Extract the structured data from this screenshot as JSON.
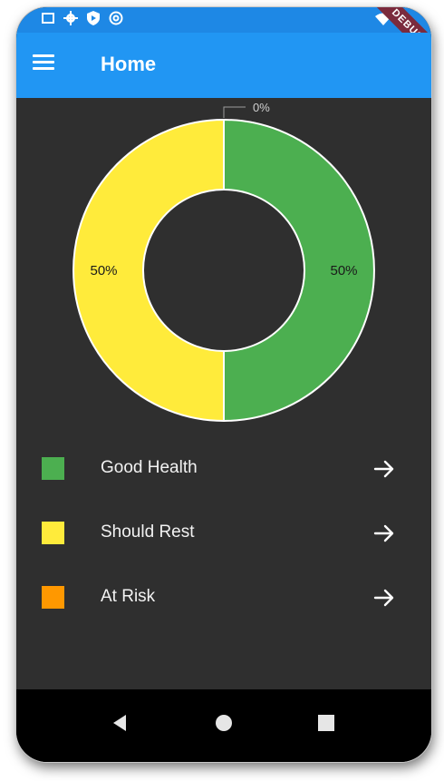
{
  "app_bar": {
    "title": "Home",
    "color": "#2196F3"
  },
  "status_bar": {
    "icons": [
      "notification-icon",
      "gear-icon",
      "shield-icon",
      "sync-icon"
    ],
    "right_icons": [
      "wifi-icon"
    ]
  },
  "debug_banner": "DEBUG",
  "chart_data": {
    "type": "pie",
    "donut": true,
    "slices": [
      {
        "name": "Good Health",
        "value": 50,
        "label": "50%",
        "color": "#4CAF50"
      },
      {
        "name": "Should Rest",
        "value": 50,
        "label": "50%",
        "color": "#FFEB3B"
      },
      {
        "name": "At Risk",
        "value": 0,
        "label": "0%",
        "color": "#FF9800"
      }
    ]
  },
  "legend": [
    {
      "label": "Good Health",
      "color": "#4CAF50"
    },
    {
      "label": "Should Rest",
      "color": "#FFEB3B"
    },
    {
      "label": "At Risk",
      "color": "#FF9800"
    }
  ],
  "nav_bar": {
    "buttons": [
      "back-icon",
      "home-icon",
      "recents-icon"
    ]
  }
}
